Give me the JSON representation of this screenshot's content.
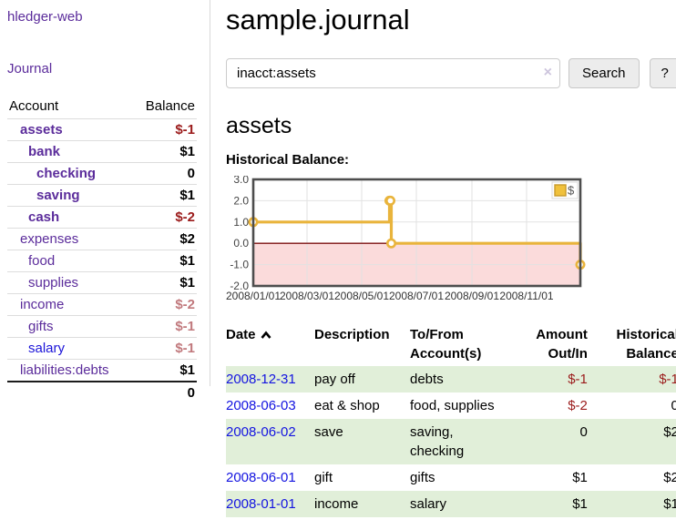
{
  "sidebar": {
    "brand": "hledger-web",
    "nav_journal": "Journal",
    "accounts_header": {
      "account": "Account",
      "balance": "Balance"
    },
    "accounts": [
      {
        "name": "assets",
        "level": 1,
        "in_account": true,
        "balance": "$-1",
        "negative": "strong"
      },
      {
        "name": "bank",
        "level": 2,
        "in_account": true,
        "balance": "$1",
        "negative": "none"
      },
      {
        "name": "checking",
        "level": 3,
        "in_account": true,
        "balance": "0",
        "negative": "none"
      },
      {
        "name": "saving",
        "level": 3,
        "in_account": true,
        "balance": "$1",
        "negative": "none"
      },
      {
        "name": "cash",
        "level": 2,
        "in_account": true,
        "balance": "$-2",
        "negative": "strong"
      },
      {
        "name": "expenses",
        "level": 1,
        "in_account": false,
        "balance": "$2",
        "negative": "none"
      },
      {
        "name": "food",
        "level": 2,
        "in_account": false,
        "balance": "$1",
        "negative": "none"
      },
      {
        "name": "supplies",
        "level": 2,
        "in_account": false,
        "balance": "$1",
        "negative": "none"
      },
      {
        "name": "income",
        "level": 1,
        "in_account": false,
        "balance": "$-2",
        "negative": "muted"
      },
      {
        "name": "gifts",
        "level": 2,
        "in_account": false,
        "balance": "$-1",
        "negative": "muted"
      },
      {
        "name": "salary",
        "level": 2,
        "in_account": false,
        "balance": "$-1",
        "negative": "muted",
        "link_style": "blue"
      },
      {
        "name": "liabilities:debts",
        "level": 1,
        "in_account": false,
        "balance": "$1",
        "negative": "none"
      }
    ],
    "total": "0"
  },
  "main": {
    "title": "sample.journal",
    "search": {
      "value": "inacct:assets",
      "clear_icon": "×",
      "button_label": "Search",
      "help_label": "?"
    },
    "account_heading": "assets",
    "chart_label": "Historical Balance:"
  },
  "chart_data": {
    "type": "line",
    "step": true,
    "title": "Historical Balance",
    "series": [
      {
        "name": "$",
        "color": "#e9b43c",
        "points": [
          [
            "2008-01-01",
            1
          ],
          [
            "2008-06-01",
            2
          ],
          [
            "2008-06-02",
            2
          ],
          [
            "2008-06-03",
            0
          ],
          [
            "2008-12-31",
            -1
          ]
        ]
      }
    ],
    "x_range": [
      "2008-01-01",
      "2008-12-31"
    ],
    "x_tick_labels": [
      "2008/01/01",
      "2008/03/01",
      "2008/05/01",
      "2008/07/01",
      "2008/09/01",
      "2008/11/01"
    ],
    "y_tick_labels": [
      "3.0",
      "2.0",
      "1.0",
      "0.0",
      "-1.0",
      "-2.0"
    ],
    "y_ticks": [
      3,
      2,
      1,
      0,
      -1,
      -2
    ],
    "ylim": [
      -2,
      3
    ],
    "grid": true,
    "legend_position": "top-right",
    "legend_label": "$",
    "negative_region_fill": "#fbdbdb",
    "zero_line_color": "#7d1212"
  },
  "register": {
    "headers": {
      "date": "Date",
      "description": "Description",
      "accounts": "To/From Account(s)",
      "amount": "Amount Out/In",
      "balance": "Historical Balance"
    },
    "rows": [
      {
        "date": "2008-12-31",
        "description": "pay off",
        "accounts": "debts",
        "amount": "$-1",
        "amount_negative": true,
        "balance": "$-1",
        "balance_negative": true
      },
      {
        "date": "2008-06-03",
        "description": "eat & shop",
        "accounts": "food, supplies",
        "amount": "$-2",
        "amount_negative": true,
        "balance": "0",
        "balance_negative": false
      },
      {
        "date": "2008-06-02",
        "description": "save",
        "accounts": "saving, checking",
        "amount": "0",
        "amount_negative": false,
        "balance": "$2",
        "balance_negative": false
      },
      {
        "date": "2008-06-01",
        "description": "gift",
        "accounts": "gifts",
        "amount": "$1",
        "amount_negative": false,
        "balance": "$2",
        "balance_negative": false
      },
      {
        "date": "2008-01-01",
        "description": "income",
        "accounts": "salary",
        "amount": "$1",
        "amount_negative": false,
        "balance": "$1",
        "balance_negative": false
      }
    ]
  },
  "colors": {
    "link_purple": "#5b2c9b",
    "link_blue": "#1414e0",
    "negative_strong": "#9b1b1b",
    "negative_muted": "#c1797d",
    "row_stripe_green": "#e1efd9",
    "chart_line_gold": "#e9b43c",
    "chart_negative_fill": "#fbdbdb",
    "chart_zero_line": "#7d1212",
    "chart_border": "#4d4d4d"
  }
}
